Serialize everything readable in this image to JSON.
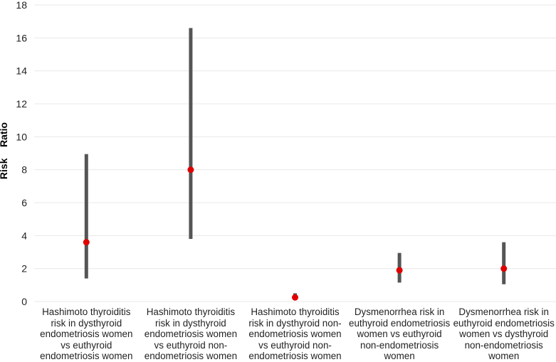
{
  "chart_data": {
    "type": "errorbar",
    "title": "",
    "xlabel": "",
    "ylabel": "Risk    Ratio",
    "ylim": [
      0,
      18
    ],
    "yticks": [
      0,
      2,
      4,
      6,
      8,
      10,
      12,
      14,
      16,
      18
    ],
    "grid": true,
    "categories": [
      "Hashimoto thyroiditis\nrisk in dysthyroid\nendometriosis women\nvs euthyroid\nendometriosis women",
      "Hashimoto thyroiditis\nrisk in dysthyroid\nendometriosis women\nvs euthyroid non-\nendometriosis women",
      "Hashimoto thyroiditis\nrisk in  dysthyroid non-\nendometriosis women\nvs euthyroid non-\nendometriosis women",
      "Dysmenorrhea risk in\neuthyroid endometriosis\nwomen vs euthyroid\nnon-endometriosis\nwomen",
      "Dysmenorrhea risk in\neuthyroid endometriosis\nwomen vs dysthyroid\nnon-endometriosis\nwomen"
    ],
    "series": [
      {
        "name": "Risk Ratio",
        "values": [
          3.6,
          8.0,
          0.25,
          1.9,
          2.0
        ],
        "lower": [
          1.4,
          3.8,
          0.1,
          1.15,
          1.05
        ],
        "upper": [
          8.95,
          16.6,
          0.5,
          2.95,
          3.6
        ]
      }
    ],
    "colors": {
      "point": "#e00000",
      "interval": "#555555",
      "grid": "#e8e8e8"
    }
  }
}
